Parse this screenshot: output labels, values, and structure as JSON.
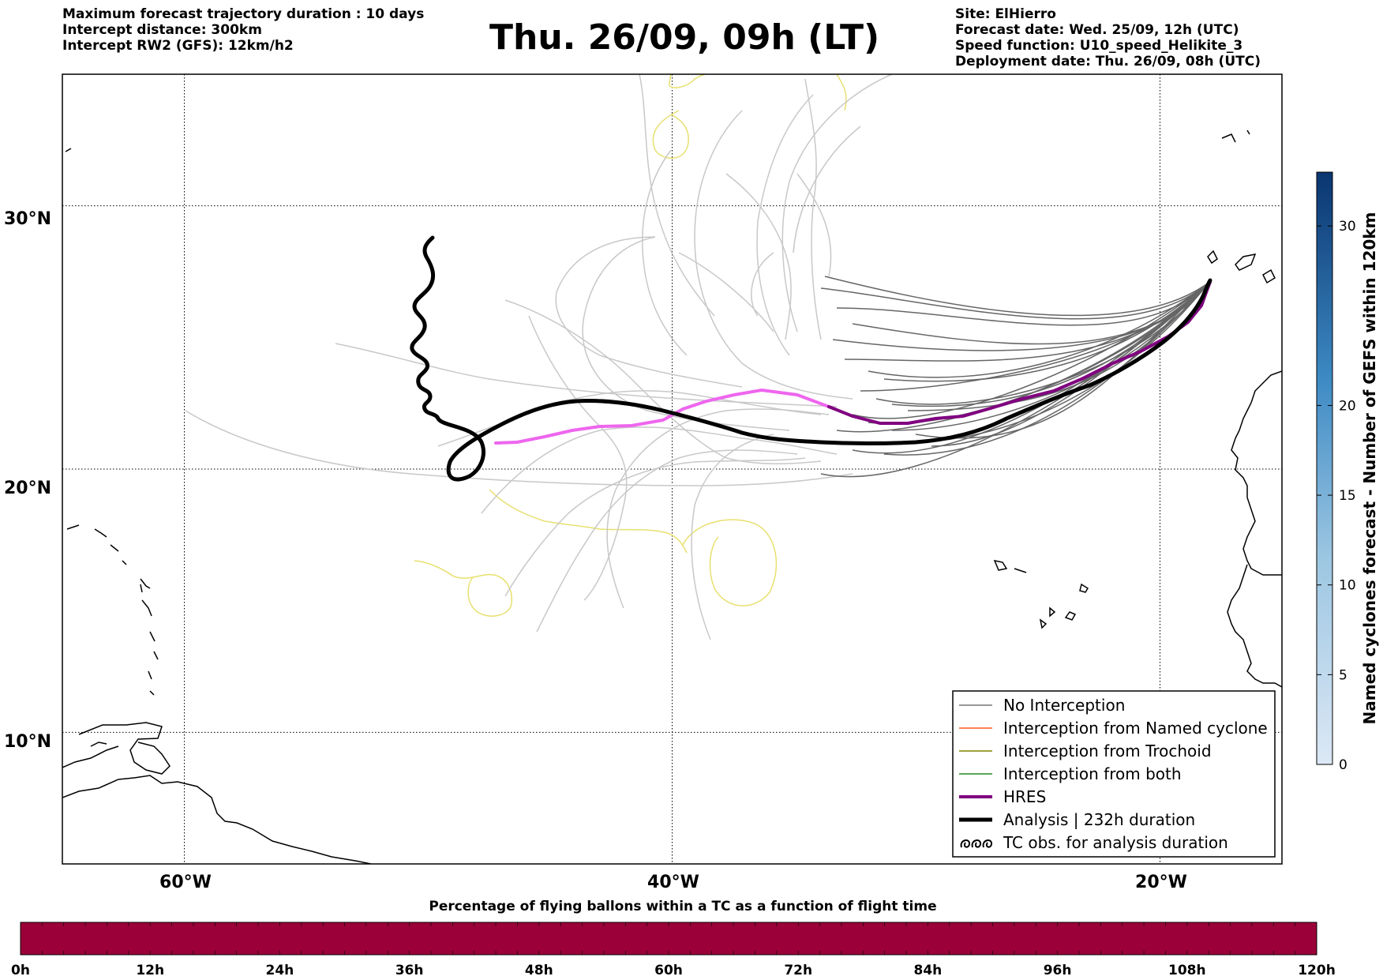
{
  "header": {
    "left_lines": [
      "Maximum forecast trajectory duration : 10 days",
      "Intercept distance: 300km",
      "Intercept RW2 (GFS):  12km/h2"
    ],
    "title": "Thu. 26/09, 09h (LT)",
    "right_lines": [
      "Site: ElHierro",
      "Forecast date: Wed. 25/09, 12h (UTC)",
      "Speed function: U10_speed_Helikite_3",
      "Deployment date: Thu. 26/09, 08h (UTC)"
    ]
  },
  "map": {
    "lon_range": [
      -65,
      -15
    ],
    "lat_range": [
      5,
      35
    ],
    "meridians": [
      -60,
      -40,
      -20
    ],
    "parallels": [
      10,
      20,
      30
    ],
    "lon_labels": [
      "60°W",
      "40°W",
      "20°W"
    ],
    "lat_labels": [
      "10°N",
      "20°N",
      "30°N"
    ]
  },
  "legend": {
    "items": [
      {
        "label": "No Interception",
        "color": "#777777",
        "width": 1.5,
        "type": "line"
      },
      {
        "label": "Interception from Named cyclone",
        "color": "#ff5a1f",
        "width": 1.5,
        "type": "line"
      },
      {
        "label": "Interception from Trochoid",
        "color": "#808000",
        "width": 1.5,
        "type": "line"
      },
      {
        "label": "Interception from both",
        "color": "#228b22",
        "width": 1.5,
        "type": "line"
      },
      {
        "label": "HRES",
        "color": "#800080",
        "width": 4,
        "type": "line"
      },
      {
        "label": "Analysis | 232h duration",
        "color": "#000000",
        "width": 5,
        "type": "line"
      },
      {
        "label": "TC obs. for analysis duration",
        "color": "#000000",
        "width": 2,
        "type": "loops"
      }
    ]
  },
  "colorbar_right": {
    "label": "Named cyclones forecast - Number of GEFS within 120km",
    "ticks": [
      "0",
      "5",
      "10",
      "15",
      "20",
      "30"
    ],
    "color_low": "#dce8f5",
    "color_high": "#0a3570"
  },
  "colorbar_bottom": {
    "title": "Percentage of flying ballons within a TC as a function of flight time",
    "ticks": [
      "0h",
      "12h",
      "24h",
      "36h",
      "48h",
      "60h",
      "72h",
      "84h",
      "96h",
      "108h",
      "120h"
    ],
    "color": "#9b0038"
  },
  "colors": {
    "ensemble_far": "#c8c8c8",
    "ensemble_near": "#666666",
    "cyclone_tracks": "#e8e070",
    "hres_far": "#ee66ee",
    "hres_near": "#800080",
    "analysis": "#000000"
  }
}
